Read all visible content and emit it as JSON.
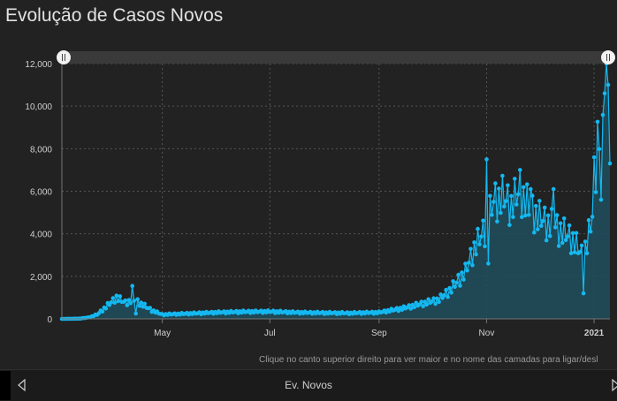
{
  "title": "Evolução de Casos Novos",
  "hint": "Clique no canto superior direito para ver maior e no nome das camadas para ligar/desl",
  "footer": {
    "layer_name": "Ev. Novos"
  },
  "icons": {
    "prev": "chevron-left-icon",
    "next": "chevron-right-icon",
    "handle": "pause-handle-icon"
  },
  "colors": {
    "line": "#14b8f0",
    "area": "#1f4e5d",
    "grid": "#555555",
    "background": "#222222"
  },
  "chart_data": {
    "type": "area",
    "title": "Evolução de Casos Novos",
    "xlabel": "",
    "ylabel": "",
    "x_start": "2020-03-05",
    "x_end": "2021-01-10",
    "ylim": [
      0,
      12000
    ],
    "y_ticks": [
      0,
      2000,
      4000,
      6000,
      8000,
      10000,
      12000
    ],
    "y_tick_labels": [
      "0",
      "2,000",
      "4,000",
      "6,000",
      "8,000",
      "10,000",
      "12,000"
    ],
    "x_ticks": [
      {
        "date": "2020-05-01",
        "label": "May",
        "bold": false
      },
      {
        "date": "2020-07-01",
        "label": "Jul",
        "bold": false
      },
      {
        "date": "2020-09-01",
        "label": "Sep",
        "bold": false
      },
      {
        "date": "2020-11-01",
        "label": "Nov",
        "bold": false
      },
      {
        "date": "2021-01-01",
        "label": "2021",
        "bold": true
      }
    ],
    "grid": true,
    "series": [
      {
        "anchors": [
          [
            "2020-03-05",
            0
          ],
          [
            "2020-03-15",
            10
          ],
          [
            "2020-03-20",
            60
          ],
          [
            "2020-03-25",
            200
          ],
          [
            "2020-04-01",
            700
          ],
          [
            "2020-04-05",
            1000
          ],
          [
            "2020-04-10",
            750
          ],
          [
            "2020-04-15",
            900
          ],
          [
            "2020-04-20",
            650
          ],
          [
            "2020-04-25",
            400
          ],
          [
            "2020-05-01",
            200
          ],
          [
            "2020-05-10",
            230
          ],
          [
            "2020-05-20",
            260
          ],
          [
            "2020-06-01",
            300
          ],
          [
            "2020-06-15",
            330
          ],
          [
            "2020-07-01",
            340
          ],
          [
            "2020-07-15",
            300
          ],
          [
            "2020-08-01",
            280
          ],
          [
            "2020-08-15",
            270
          ],
          [
            "2020-09-01",
            300
          ],
          [
            "2020-09-15",
            500
          ],
          [
            "2020-09-25",
            700
          ],
          [
            "2020-10-05",
            900
          ],
          [
            "2020-10-12",
            1400
          ],
          [
            "2020-10-20",
            2200
          ],
          [
            "2020-10-25",
            3300
          ],
          [
            "2020-11-01",
            4300
          ],
          [
            "2020-11-05",
            5500
          ],
          [
            "2020-11-10",
            5700
          ],
          [
            "2020-11-15",
            5300
          ],
          [
            "2020-11-20",
            6000
          ],
          [
            "2020-11-25",
            5200
          ],
          [
            "2020-12-01",
            4700
          ],
          [
            "2020-12-05",
            4500
          ],
          [
            "2020-12-10",
            4300
          ],
          [
            "2020-12-15",
            4000
          ],
          [
            "2020-12-20",
            3700
          ],
          [
            "2020-12-25",
            3000
          ],
          [
            "2020-12-28",
            3500
          ],
          [
            "2020-12-31",
            4800
          ],
          [
            "2021-01-03",
            8500
          ],
          [
            "2021-01-06",
            10200
          ],
          [
            "2021-01-09",
            10800
          ],
          [
            "2021-01-10",
            6700
          ]
        ],
        "spikes": [
          [
            "2020-04-14",
            1550
          ],
          [
            "2020-04-16",
            250
          ],
          [
            "2020-11-01",
            7500
          ],
          [
            "2020-11-02",
            2600
          ],
          [
            "2020-11-20",
            7000
          ],
          [
            "2020-11-26",
            6100
          ],
          [
            "2020-12-09",
            6100
          ],
          [
            "2020-12-26",
            1200
          ],
          [
            "2021-01-01",
            7600
          ],
          [
            "2021-01-05",
            5600
          ],
          [
            "2021-01-07",
            10600
          ],
          [
            "2021-01-09",
            11000
          ]
        ]
      }
    ]
  }
}
